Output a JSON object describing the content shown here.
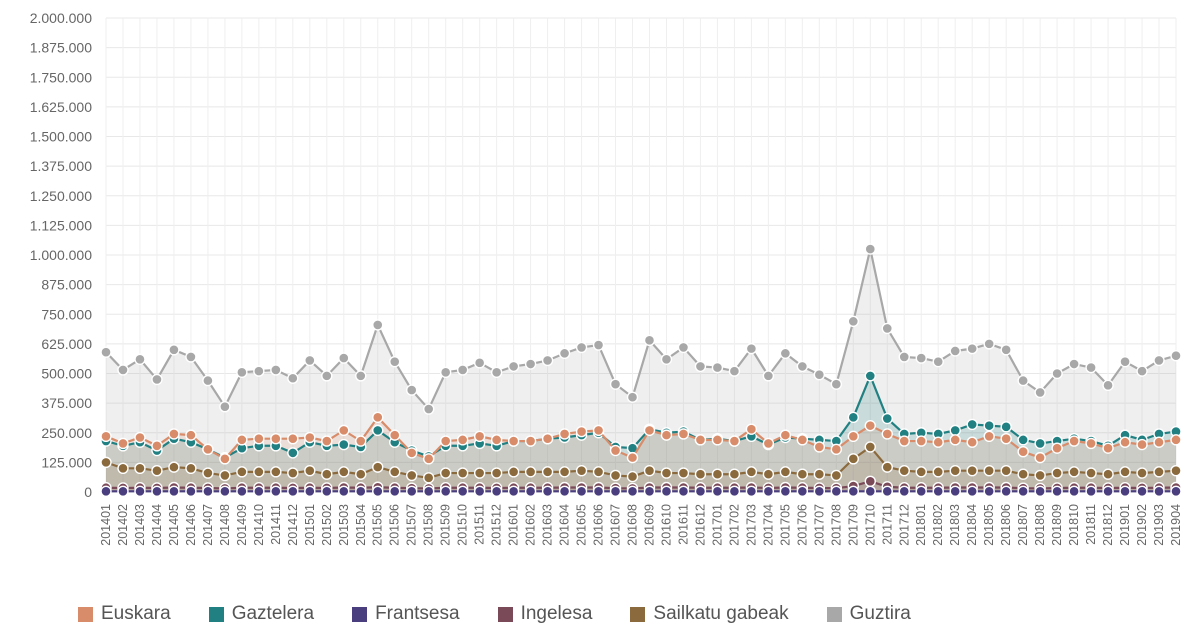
{
  "chart_data": {
    "type": "area",
    "ylim": [
      0,
      2000000
    ],
    "y_ticks": [
      "2.000.000",
      "1.875.000",
      "1.750.000",
      "1.625.000",
      "1.500.000",
      "1.375.000",
      "1.250.000",
      "1.125.000",
      "1.000.000",
      "875.000",
      "750.000",
      "625.000",
      "500.000",
      "375.000",
      "250.000",
      "125.000",
      "0"
    ],
    "grid": true,
    "legend_position": "bottom",
    "categories": [
      "201401",
      "201402",
      "201403",
      "201404",
      "201405",
      "201406",
      "201407",
      "201408",
      "201409",
      "201410",
      "201411",
      "201412",
      "201501",
      "201502",
      "201503",
      "201504",
      "201505",
      "201506",
      "201507",
      "201508",
      "201509",
      "201510",
      "201511",
      "201512",
      "201601",
      "201602",
      "201603",
      "201604",
      "201605",
      "201606",
      "201607",
      "201608",
      "201609",
      "201610",
      "201611",
      "201612",
      "201701",
      "201702",
      "201703",
      "201704",
      "201705",
      "201706",
      "201707",
      "201708",
      "201709",
      "201710",
      "201711",
      "201712",
      "201801",
      "201802",
      "201803",
      "201804",
      "201805",
      "201806",
      "201807",
      "201808",
      "201809",
      "201810",
      "201811",
      "201812",
      "201901",
      "201902",
      "201903",
      "201904"
    ],
    "series": [
      {
        "name": "Euskara",
        "color": "#d88c6a",
        "values": [
          235000,
          205000,
          230000,
          195000,
          245000,
          240000,
          180000,
          140000,
          220000,
          225000,
          225000,
          225000,
          230000,
          215000,
          260000,
          215000,
          315000,
          240000,
          165000,
          140000,
          215000,
          220000,
          235000,
          220000,
          215000,
          215000,
          225000,
          245000,
          255000,
          260000,
          175000,
          145000,
          260000,
          240000,
          245000,
          220000,
          220000,
          215000,
          265000,
          205000,
          240000,
          220000,
          190000,
          180000,
          235000,
          280000,
          245000,
          215000,
          215000,
          210000,
          220000,
          210000,
          235000,
          225000,
          170000,
          145000,
          185000,
          215000,
          205000,
          185000,
          210000,
          200000,
          210000,
          220000
        ]
      },
      {
        "name": "Gaztelera",
        "color": "#218082",
        "values": [
          215000,
          195000,
          210000,
          175000,
          225000,
          210000,
          180000,
          145000,
          185000,
          195000,
          195000,
          165000,
          210000,
          195000,
          200000,
          190000,
          260000,
          210000,
          175000,
          150000,
          195000,
          195000,
          205000,
          195000,
          215000,
          215000,
          225000,
          230000,
          240000,
          250000,
          190000,
          185000,
          265000,
          250000,
          255000,
          220000,
          225000,
          215000,
          235000,
          200000,
          230000,
          225000,
          220000,
          215000,
          315000,
          490000,
          310000,
          245000,
          250000,
          245000,
          260000,
          285000,
          280000,
          275000,
          220000,
          205000,
          215000,
          225000,
          215000,
          195000,
          240000,
          220000,
          245000,
          255000
        ]
      },
      {
        "name": "Frantsesa",
        "color": "#4a3e7e",
        "values": [
          3000,
          3000,
          3000,
          3000,
          3000,
          3000,
          3000,
          3000,
          3000,
          3000,
          3000,
          3000,
          3000,
          3000,
          3000,
          3000,
          3000,
          3000,
          3000,
          3000,
          3000,
          3000,
          3000,
          3000,
          3000,
          3000,
          3000,
          3000,
          3000,
          3000,
          3000,
          3000,
          3000,
          3000,
          3000,
          3000,
          3000,
          3000,
          3000,
          3000,
          3000,
          3000,
          3000,
          3000,
          3000,
          3000,
          3000,
          3000,
          3000,
          3000,
          3000,
          3000,
          3000,
          3000,
          3000,
          3000,
          3000,
          3000,
          3000,
          3000,
          3000,
          3000,
          3000,
          3000
        ]
      },
      {
        "name": "Ingelesa",
        "color": "#7a4a58",
        "values": [
          18000,
          17000,
          18000,
          17000,
          19000,
          18000,
          17000,
          15000,
          18000,
          18000,
          18000,
          17000,
          18000,
          17000,
          19000,
          18000,
          20000,
          18000,
          16000,
          15000,
          18000,
          18000,
          18000,
          17000,
          18000,
          18000,
          18000,
          19000,
          19000,
          19000,
          16000,
          15000,
          19000,
          19000,
          19000,
          18000,
          18000,
          18000,
          19000,
          17000,
          19000,
          18000,
          17000,
          16000,
          25000,
          45000,
          22000,
          18000,
          18000,
          18000,
          19000,
          19000,
          19000,
          19000,
          16000,
          15000,
          17000,
          18000,
          18000,
          17000,
          18000,
          17000,
          18000,
          19000
        ]
      },
      {
        "name": "Sailkatu gabeak",
        "color": "#8b6a3e",
        "values": [
          125000,
          100000,
          100000,
          90000,
          105000,
          100000,
          80000,
          70000,
          85000,
          85000,
          85000,
          80000,
          90000,
          75000,
          85000,
          75000,
          105000,
          85000,
          70000,
          60000,
          80000,
          80000,
          80000,
          80000,
          85000,
          85000,
          85000,
          85000,
          90000,
          85000,
          70000,
          65000,
          90000,
          80000,
          80000,
          75000,
          75000,
          75000,
          85000,
          75000,
          85000,
          75000,
          75000,
          70000,
          140000,
          190000,
          105000,
          90000,
          85000,
          85000,
          90000,
          90000,
          90000,
          90000,
          75000,
          70000,
          80000,
          85000,
          80000,
          75000,
          85000,
          80000,
          85000,
          90000
        ]
      },
      {
        "name": "Guztira",
        "color": "#a8a8a8",
        "values": [
          590000,
          515000,
          560000,
          475000,
          600000,
          570000,
          470000,
          360000,
          505000,
          510000,
          515000,
          480000,
          555000,
          490000,
          565000,
          490000,
          705000,
          550000,
          430000,
          350000,
          505000,
          515000,
          545000,
          505000,
          530000,
          540000,
          555000,
          585000,
          610000,
          620000,
          455000,
          400000,
          640000,
          560000,
          610000,
          530000,
          525000,
          510000,
          605000,
          490000,
          585000,
          530000,
          495000,
          455000,
          720000,
          1025000,
          690000,
          570000,
          565000,
          550000,
          595000,
          605000,
          625000,
          600000,
          470000,
          420000,
          500000,
          540000,
          525000,
          450000,
          550000,
          510000,
          555000,
          575000
        ]
      }
    ],
    "draw_order": [
      "Guztira",
      "Gaztelera",
      "Euskara",
      "Sailkatu gabeak",
      "Ingelesa",
      "Frantsesa"
    ]
  }
}
